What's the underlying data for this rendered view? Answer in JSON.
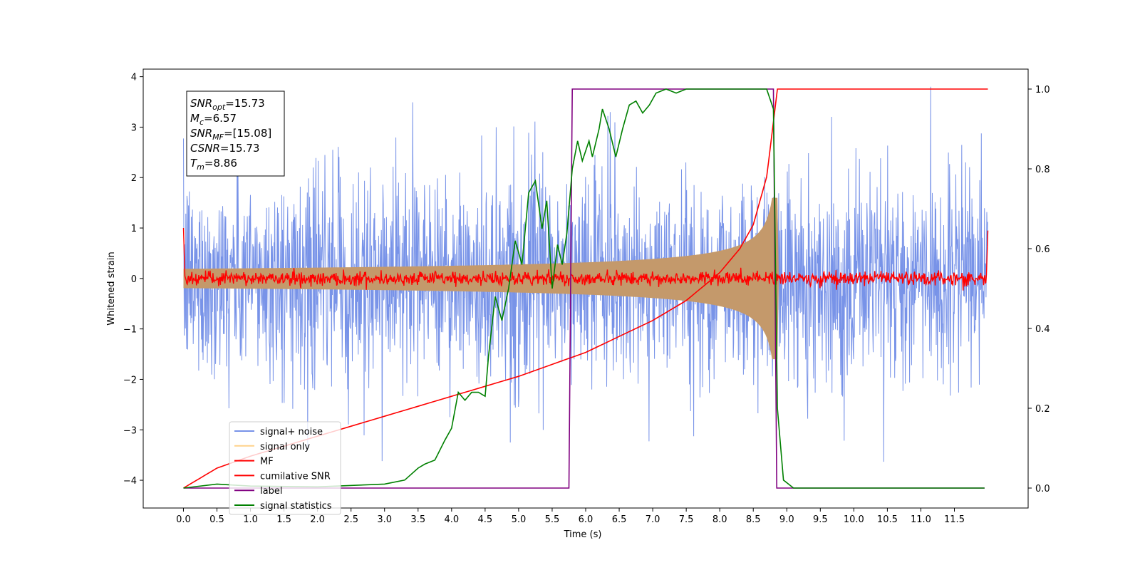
{
  "chart_data": {
    "type": "line",
    "title": "",
    "xlabel": "Time (s)",
    "ylabel": "Whitened strain",
    "xlim": [
      -0.6,
      12.6
    ],
    "ylim": [
      -4.55,
      4.15
    ],
    "y2lim": [
      -0.05,
      1.05
    ],
    "xticks": [
      0.0,
      0.5,
      1.0,
      1.5,
      2.0,
      2.5,
      3.0,
      3.5,
      4.0,
      4.5,
      5.0,
      5.5,
      6.0,
      6.5,
      7.0,
      7.5,
      8.0,
      8.5,
      9.0,
      9.5,
      10.0,
      10.5,
      11.0,
      11.5
    ],
    "xtick_labels": [
      "0.0",
      "0.5",
      "1.0",
      "1.5",
      "2.0",
      "2.5",
      "3.0",
      "3.5",
      "4.0",
      "4.5",
      "5.0",
      "5.5",
      "6.0",
      "6.5",
      "7.0",
      "7.5",
      "8.0",
      "8.5",
      "9.0",
      "9.5",
      "10.0",
      "10.5",
      "11.0",
      "11.5"
    ],
    "yticks": [
      -4,
      -3,
      -2,
      -1,
      0,
      1,
      2,
      3,
      4
    ],
    "ytick_labels": [
      "−4",
      "−3",
      "−2",
      "−1",
      "0",
      "1",
      "2",
      "3",
      "4"
    ],
    "y2ticks": [
      0.0,
      0.2,
      0.4,
      0.6,
      0.8,
      1.0
    ],
    "y2tick_labels": [
      "0.0",
      "0.2",
      "0.4",
      "0.6",
      "0.8",
      "1.0"
    ],
    "annotation": [
      {
        "base": "SNR",
        "sub": "opt",
        "rest": "=15.73"
      },
      {
        "base": "M",
        "sub": "c",
        "rest": "=6.57"
      },
      {
        "base": "SNR",
        "sub": "MF",
        "rest": "=[15.08]"
      },
      {
        "base": "CSNR",
        "sub": "",
        "rest": "=15.73"
      },
      {
        "base": "T",
        "sub": "m",
        "rest": "=8.86"
      }
    ],
    "legend": {
      "location": "lower-left",
      "entries": [
        {
          "label": "signal+ noise",
          "color": "#7893e8"
        },
        {
          "label": "signal only",
          "color": "#ffd28a"
        },
        {
          "label": "MF",
          "color": "#ff0000"
        },
        {
          "label": "cumilative SNR",
          "color": "#ff0000"
        },
        {
          "label": "label",
          "color": "#800080"
        },
        {
          "label": "signal statistics",
          "color": "#008000"
        }
      ]
    },
    "series": [
      {
        "name": "signal+ noise",
        "axis": "left",
        "color": "#7893e8",
        "kind": "noise",
        "x_range": [
          0.0,
          12.0
        ],
        "mean": 0.0,
        "amplitude": 1.0,
        "extremes": [
          -4.0,
          3.8
        ]
      },
      {
        "name": "signal only",
        "axis": "left",
        "color": "#c4996b",
        "kind": "chirp-envelope",
        "x_range": [
          0.0,
          8.86
        ],
        "peak": 1.6,
        "merger_time": 8.86
      },
      {
        "name": "MF",
        "axis": "left",
        "color": "#ff0000",
        "kind": "noise",
        "x_range": [
          0.0,
          12.0
        ],
        "mean": 0.0,
        "amplitude": 0.07,
        "edge_values": [
          1.0,
          0.95
        ]
      },
      {
        "name": "cumilative SNR",
        "axis": "right",
        "color": "#ff0000",
        "x": [
          0.0,
          0.5,
          1.0,
          2.0,
          3.0,
          4.0,
          5.0,
          6.0,
          7.0,
          7.5,
          8.0,
          8.3,
          8.5,
          8.7,
          8.86,
          12.0
        ],
        "y": [
          0.0,
          0.05,
          0.08,
          0.13,
          0.18,
          0.23,
          0.28,
          0.34,
          0.42,
          0.47,
          0.54,
          0.6,
          0.66,
          0.78,
          1.0,
          1.0
        ]
      },
      {
        "name": "label",
        "axis": "right",
        "color": "#800080",
        "x": [
          0.0,
          5.75,
          5.8,
          8.8,
          8.85,
          11.95
        ],
        "y": [
          0.0,
          0.0,
          1.0,
          1.0,
          0.0,
          0.0
        ]
      },
      {
        "name": "signal statistics",
        "axis": "right",
        "color": "#008000",
        "x": [
          0.0,
          0.5,
          1.0,
          2.0,
          3.0,
          3.3,
          3.5,
          3.6,
          3.75,
          3.9,
          4.0,
          4.1,
          4.2,
          4.3,
          4.4,
          4.5,
          4.55,
          4.65,
          4.75,
          4.85,
          4.95,
          5.05,
          5.15,
          5.25,
          5.35,
          5.42,
          5.5,
          5.58,
          5.65,
          5.72,
          5.8,
          5.88,
          5.95,
          6.05,
          6.1,
          6.2,
          6.25,
          6.35,
          6.45,
          6.55,
          6.65,
          6.75,
          6.85,
          6.95,
          7.05,
          7.2,
          7.35,
          7.5,
          7.8,
          8.0,
          8.2,
          8.5,
          8.7,
          8.8,
          8.86,
          8.95,
          9.1,
          11.95
        ],
        "y": [
          0.0,
          0.01,
          0.005,
          0.003,
          0.01,
          0.02,
          0.05,
          0.06,
          0.07,
          0.12,
          0.15,
          0.24,
          0.22,
          0.24,
          0.24,
          0.23,
          0.33,
          0.48,
          0.42,
          0.5,
          0.62,
          0.56,
          0.74,
          0.77,
          0.65,
          0.72,
          0.5,
          0.61,
          0.56,
          0.64,
          0.8,
          0.87,
          0.82,
          0.87,
          0.83,
          0.9,
          0.95,
          0.9,
          0.83,
          0.9,
          0.96,
          0.97,
          0.94,
          0.96,
          0.99,
          1.0,
          0.99,
          1.0,
          1.0,
          1.0,
          1.0,
          1.0,
          1.0,
          0.95,
          0.2,
          0.02,
          0.0,
          0.0
        ]
      }
    ]
  }
}
